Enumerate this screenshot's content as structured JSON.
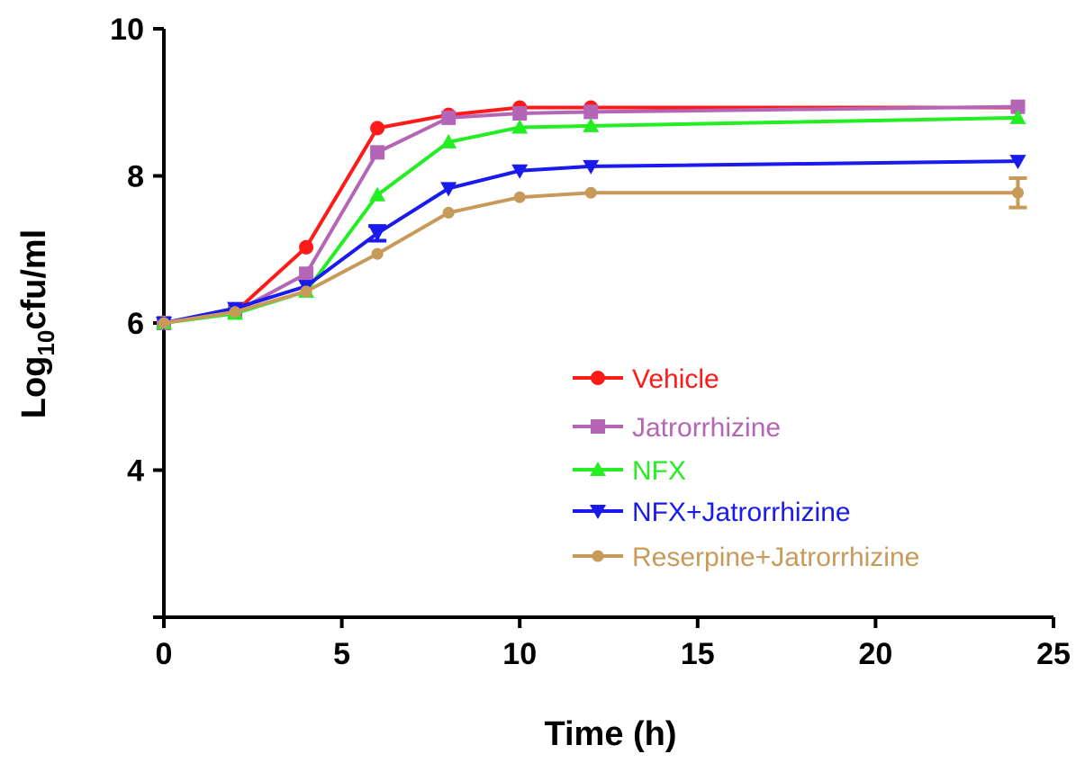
{
  "chart_data": {
    "type": "line",
    "title": "",
    "xlabel": "Time (h)",
    "ylabel_main": "Log",
    "ylabel_sub": "10",
    "ylabel_rest": "cfu/ml",
    "xlim": [
      0,
      25
    ],
    "ylim": [
      2,
      10
    ],
    "xticks": [
      "0",
      "5",
      "10",
      "15",
      "20",
      "25"
    ],
    "yticks": [
      "4",
      "6",
      "8",
      "10"
    ],
    "grid": false,
    "legend_placement": "bottom-right",
    "x": [
      0,
      2,
      4,
      6,
      8,
      10,
      12,
      24
    ],
    "series": [
      {
        "name": "Vehicle",
        "color": "#ff1a1a",
        "marker": "circle",
        "values": [
          6.0,
          6.15,
          7.03,
          8.65,
          8.83,
          8.93,
          8.93,
          8.93
        ],
        "errors": [
          0,
          0,
          0,
          0,
          0,
          0,
          0,
          0
        ]
      },
      {
        "name": "Jatrorrhizine",
        "color": "#b565b5",
        "marker": "square",
        "values": [
          6.0,
          6.15,
          6.67,
          8.32,
          8.79,
          8.85,
          8.87,
          8.94
        ],
        "errors": [
          0,
          0,
          0,
          0,
          0,
          0,
          0,
          0
        ]
      },
      {
        "name": "NFX",
        "color": "#22ee22",
        "marker": "triangle-up",
        "values": [
          6.0,
          6.13,
          6.43,
          7.74,
          8.46,
          8.66,
          8.68,
          8.79
        ],
        "errors": [
          0,
          0,
          0,
          0,
          0,
          0,
          0,
          0
        ]
      },
      {
        "name": "NFX+Jatrorrhizine",
        "color": "#1a1aee",
        "marker": "triangle-down",
        "values": [
          6.0,
          6.2,
          6.5,
          7.22,
          7.83,
          8.07,
          8.13,
          8.2
        ],
        "errors": [
          0,
          0,
          0,
          0.1,
          0,
          0,
          0,
          0
        ]
      },
      {
        "name": "Reserpine+Jatrorrhizine",
        "color": "#c89a5a",
        "marker": "circle-small",
        "values": [
          6.0,
          6.15,
          6.43,
          6.94,
          7.5,
          7.71,
          7.77,
          7.77
        ],
        "errors": [
          0,
          0,
          0,
          0,
          0,
          0,
          0,
          0.2
        ]
      }
    ]
  }
}
